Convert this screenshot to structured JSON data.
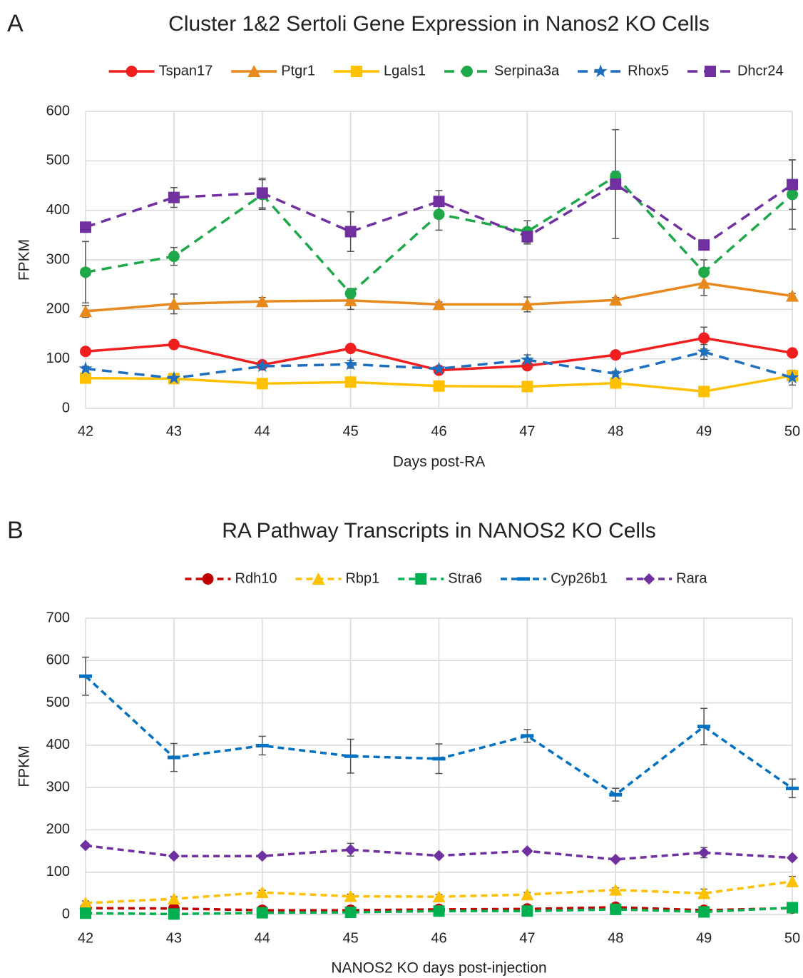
{
  "chart_data": [
    {
      "type": "line",
      "panel_label": "A",
      "title": "Cluster 1&2 Sertoli Gene Expression in Nanos2 KO Cells",
      "x_label": "Days post-RA",
      "y_label": "FPKM",
      "x": [
        42,
        43,
        44,
        45,
        46,
        47,
        48,
        49,
        50
      ],
      "xlim": [
        42,
        50
      ],
      "xticks": [
        42,
        43,
        44,
        45,
        46,
        47,
        48,
        49,
        50
      ],
      "ylim": [
        0,
        600
      ],
      "yticks": [
        0,
        100,
        200,
        300,
        400,
        500,
        600
      ],
      "grid": true,
      "legend": "top",
      "series": [
        {
          "name": "Tspan17",
          "color": "#f01e1e",
          "marker": "circle",
          "dash": false,
          "values": [
            115,
            129,
            88,
            121,
            77,
            86,
            108,
            142,
            112
          ],
          "errors": [
            5,
            5,
            5,
            5,
            5,
            5,
            5,
            22,
            5
          ]
        },
        {
          "name": "Ptgr1",
          "color": "#e8891e",
          "marker": "triangle",
          "dash": false,
          "values": [
            196,
            211,
            216,
            218,
            210,
            210,
            219,
            253,
            227
          ],
          "errors": [
            12,
            20,
            8,
            18,
            5,
            15,
            5,
            25,
            5
          ]
        },
        {
          "name": "Lgals1",
          "color": "#ffc000",
          "marker": "square",
          "dash": false,
          "values": [
            61,
            60,
            50,
            53,
            45,
            44,
            51,
            34,
            66
          ],
          "errors": [
            3,
            3,
            3,
            3,
            3,
            3,
            3,
            3,
            10
          ]
        },
        {
          "name": "Serpina3a",
          "color": "#1fa84a",
          "marker": "circle",
          "dash": true,
          "values": [
            275,
            307,
            432,
            232,
            392,
            357,
            469,
            275,
            432
          ],
          "errors": [
            62,
            18,
            30,
            10,
            32,
            22,
            10,
            25,
            70
          ]
        },
        {
          "name": "Rhox5",
          "color": "#1f6fc0",
          "marker": "star",
          "dash": true,
          "values": [
            80,
            61,
            85,
            89,
            80,
            98,
            70,
            114,
            62
          ],
          "errors": [
            5,
            5,
            5,
            8,
            5,
            10,
            5,
            15,
            15
          ]
        },
        {
          "name": "Dhcr24",
          "color": "#7030a0",
          "marker": "square",
          "dash": true,
          "values": [
            366,
            426,
            435,
            357,
            418,
            347,
            453,
            330,
            452
          ],
          "errors": [
            5,
            20,
            30,
            40,
            22,
            15,
            110,
            5,
            50
          ]
        }
      ]
    },
    {
      "type": "line",
      "panel_label": "B",
      "title": "RA Pathway Transcripts in NANOS2 KO Cells",
      "x_label": "NANOS2 KO days post-injection",
      "y_label": "FPKM",
      "x": [
        42,
        43,
        44,
        45,
        46,
        47,
        48,
        49,
        50
      ],
      "xlim": [
        42,
        50
      ],
      "xticks": [
        42,
        43,
        44,
        45,
        46,
        47,
        48,
        49,
        50
      ],
      "ylim": [
        0,
        700
      ],
      "yticks": [
        0,
        100,
        200,
        300,
        400,
        500,
        600,
        700
      ],
      "grid": true,
      "legend": "top",
      "series": [
        {
          "name": "Rdh10",
          "color": "#c00000",
          "marker": "circle",
          "dash": true,
          "values": [
            15,
            14,
            10,
            10,
            12,
            13,
            17,
            10,
            15
          ],
          "errors": [
            3,
            3,
            3,
            3,
            3,
            3,
            3,
            3,
            3
          ]
        },
        {
          "name": "Rbp1",
          "color": "#ffc000",
          "marker": "triangle",
          "dash": true,
          "values": [
            27,
            37,
            52,
            43,
            42,
            47,
            58,
            50,
            78
          ],
          "errors": [
            5,
            5,
            5,
            5,
            5,
            5,
            5,
            10,
            12
          ]
        },
        {
          "name": "Stra6",
          "color": "#00b050",
          "marker": "square",
          "dash": true,
          "values": [
            3,
            1,
            4,
            5,
            8,
            8,
            12,
            6,
            16
          ],
          "errors": [
            2,
            2,
            2,
            2,
            2,
            2,
            2,
            2,
            2
          ]
        },
        {
          "name": "Cyp26b1",
          "color": "#0070c0",
          "marker": "dash",
          "dash": true,
          "values": [
            563,
            371,
            399,
            374,
            368,
            422,
            283,
            444,
            298
          ],
          "errors": [
            45,
            33,
            22,
            40,
            35,
            15,
            15,
            43,
            22
          ]
        },
        {
          "name": "Rara",
          "color": "#7030a0",
          "marker": "diamond",
          "dash": true,
          "values": [
            163,
            138,
            138,
            153,
            139,
            150,
            130,
            146,
            134
          ],
          "errors": [
            5,
            5,
            5,
            15,
            5,
            5,
            5,
            12,
            5
          ]
        }
      ]
    }
  ]
}
